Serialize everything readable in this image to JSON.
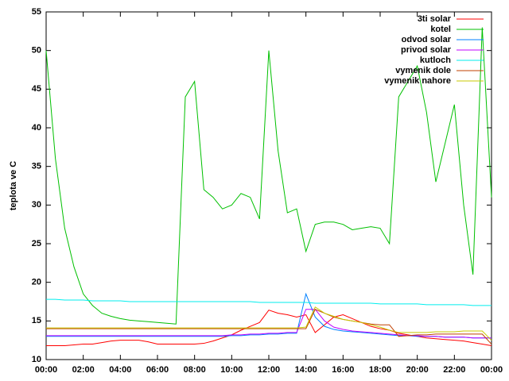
{
  "chart_data": {
    "type": "line",
    "y_label": "teplota ve C",
    "x": [
      0,
      0.5,
      1,
      1.5,
      2,
      2.5,
      3,
      3.5,
      4,
      4.5,
      5,
      5.5,
      6,
      6.5,
      7,
      7.5,
      8,
      8.5,
      9,
      9.5,
      10,
      10.5,
      11,
      11.5,
      12,
      12.5,
      13,
      13.5,
      14,
      14.5,
      15,
      15.5,
      16,
      16.5,
      17,
      17.5,
      18,
      18.5,
      19,
      19.5,
      20,
      20.5,
      21,
      21.5,
      22,
      22.5,
      23,
      23.5,
      24
    ],
    "xlim": [
      0,
      24
    ],
    "xticks": [
      {
        "value": 0,
        "label": "00:00"
      },
      {
        "value": 2,
        "label": "02:00"
      },
      {
        "value": 4,
        "label": "04:00"
      },
      {
        "value": 6,
        "label": "06:00"
      },
      {
        "value": 8,
        "label": "08:00"
      },
      {
        "value": 10,
        "label": "10:00"
      },
      {
        "value": 12,
        "label": "12:00"
      },
      {
        "value": 14,
        "label": "14:00"
      },
      {
        "value": 16,
        "label": "16:00"
      },
      {
        "value": 18,
        "label": "18:00"
      },
      {
        "value": 20,
        "label": "20:00"
      },
      {
        "value": 22,
        "label": "22:00"
      },
      {
        "value": 24,
        "label": "00:00"
      }
    ],
    "ylim": [
      10,
      55
    ],
    "yticks": [
      10,
      15,
      20,
      25,
      30,
      35,
      40,
      45,
      50,
      55
    ],
    "legend": "top-right",
    "series": [
      {
        "name": "3ti solar",
        "color": "#ff0000",
        "values": [
          11.8,
          11.8,
          11.8,
          11.9,
          12,
          12,
          12.2,
          12.4,
          12.5,
          12.5,
          12.5,
          12.3,
          12,
          12,
          12,
          12,
          12,
          12.1,
          12.4,
          12.8,
          13.2,
          13.8,
          14.3,
          14.8,
          16.4,
          16,
          15.8,
          15.5,
          15.8,
          13.5,
          14.5,
          15.5,
          15.8,
          15.3,
          14.8,
          14.3,
          14,
          13.8,
          13.4,
          13.2,
          13,
          12.8,
          12.7,
          12.6,
          12.5,
          12.4,
          12.2,
          12,
          11.8
        ]
      },
      {
        "name": "kotel",
        "color": "#00c000",
        "values": [
          50,
          36,
          27,
          22,
          18.5,
          17,
          16,
          15.6,
          15.3,
          15.1,
          15,
          14.9,
          14.8,
          14.7,
          14.6,
          44,
          46,
          32,
          31,
          29.5,
          30,
          31.5,
          31,
          28.2,
          50,
          37,
          29,
          29.5,
          24,
          27.5,
          27.8,
          27.8,
          27.5,
          26.8,
          27,
          27.2,
          27,
          25,
          44,
          46,
          48,
          42,
          33,
          38,
          43,
          30,
          21,
          53,
          31
        ]
      },
      {
        "name": "odvod solar",
        "color": "#0080ff",
        "values": [
          13,
          13,
          13,
          13,
          13,
          13,
          13,
          13,
          13,
          13,
          13,
          13,
          13,
          13,
          13,
          13,
          13,
          13,
          13,
          13,
          13.1,
          13.1,
          13.2,
          13.2,
          13.3,
          13.3,
          13.4,
          13.4,
          18.5,
          15.5,
          14.3,
          13.9,
          13.7,
          13.6,
          13.5,
          13.4,
          13.3,
          13.2,
          13.1,
          13.1,
          13,
          13,
          13,
          12.9,
          12.9,
          12.9,
          12.8,
          12.8,
          12.8
        ]
      },
      {
        "name": "privod solar",
        "color": "#c000ff",
        "values": [
          13.1,
          13.1,
          13.1,
          13.1,
          13.1,
          13.1,
          13.1,
          13.1,
          13.1,
          13.1,
          13.1,
          13.1,
          13.1,
          13.1,
          13.1,
          13.1,
          13.1,
          13.1,
          13.1,
          13.1,
          13.2,
          13.2,
          13.3,
          13.3,
          13.4,
          13.4,
          13.5,
          13.5,
          16.5,
          16.5,
          15,
          14.2,
          13.9,
          13.7,
          13.6,
          13.5,
          13.4,
          13.3,
          13.2,
          13.1,
          13.1,
          13,
          13,
          12.9,
          12.9,
          12.9,
          12.8,
          12.8,
          12.8
        ]
      },
      {
        "name": "kutloch",
        "color": "#00eeee",
        "values": [
          17.8,
          17.8,
          17.7,
          17.7,
          17.7,
          17.6,
          17.6,
          17.6,
          17.6,
          17.5,
          17.5,
          17.5,
          17.5,
          17.5,
          17.5,
          17.5,
          17.5,
          17.5,
          17.5,
          17.5,
          17.5,
          17.5,
          17.5,
          17.4,
          17.4,
          17.4,
          17.4,
          17.4,
          17.4,
          17.3,
          17.3,
          17.3,
          17.3,
          17.3,
          17.3,
          17.3,
          17.2,
          17.2,
          17.2,
          17.2,
          17.2,
          17.1,
          17.1,
          17.1,
          17.1,
          17.1,
          17,
          17,
          17
        ]
      },
      {
        "name": "vymenik dole",
        "color": "#c04000",
        "values": [
          14,
          14,
          14,
          14,
          14,
          14,
          14,
          14,
          14,
          14,
          14,
          14,
          14,
          14,
          14,
          14,
          14,
          14,
          14,
          14,
          14,
          14,
          14,
          14,
          14,
          14,
          14,
          14,
          14,
          16.5,
          16,
          15.5,
          15.2,
          15,
          14.8,
          14.6,
          14.5,
          14.5,
          13,
          13.1,
          13.2,
          13.2,
          13.3,
          13.3,
          13.3,
          13.3,
          13.3,
          13.3,
          12
        ]
      },
      {
        "name": "vymenik nahore",
        "color": "#c8c800",
        "values": [
          14.1,
          14.1,
          14.1,
          14.1,
          14.1,
          14.1,
          14.1,
          14.1,
          14.1,
          14.1,
          14.1,
          14.1,
          14.1,
          14.1,
          14.1,
          14.1,
          14.1,
          14.1,
          14.1,
          14.1,
          14.1,
          14.1,
          14.1,
          14.1,
          14.1,
          14.1,
          14.1,
          14.1,
          14.2,
          16.8,
          16,
          15.6,
          15.2,
          15,
          14.8,
          14.5,
          14.2,
          13.8,
          13.5,
          13.5,
          13.5,
          13.5,
          13.6,
          13.6,
          13.6,
          13.7,
          13.7,
          13.7,
          12.5
        ]
      }
    ]
  }
}
